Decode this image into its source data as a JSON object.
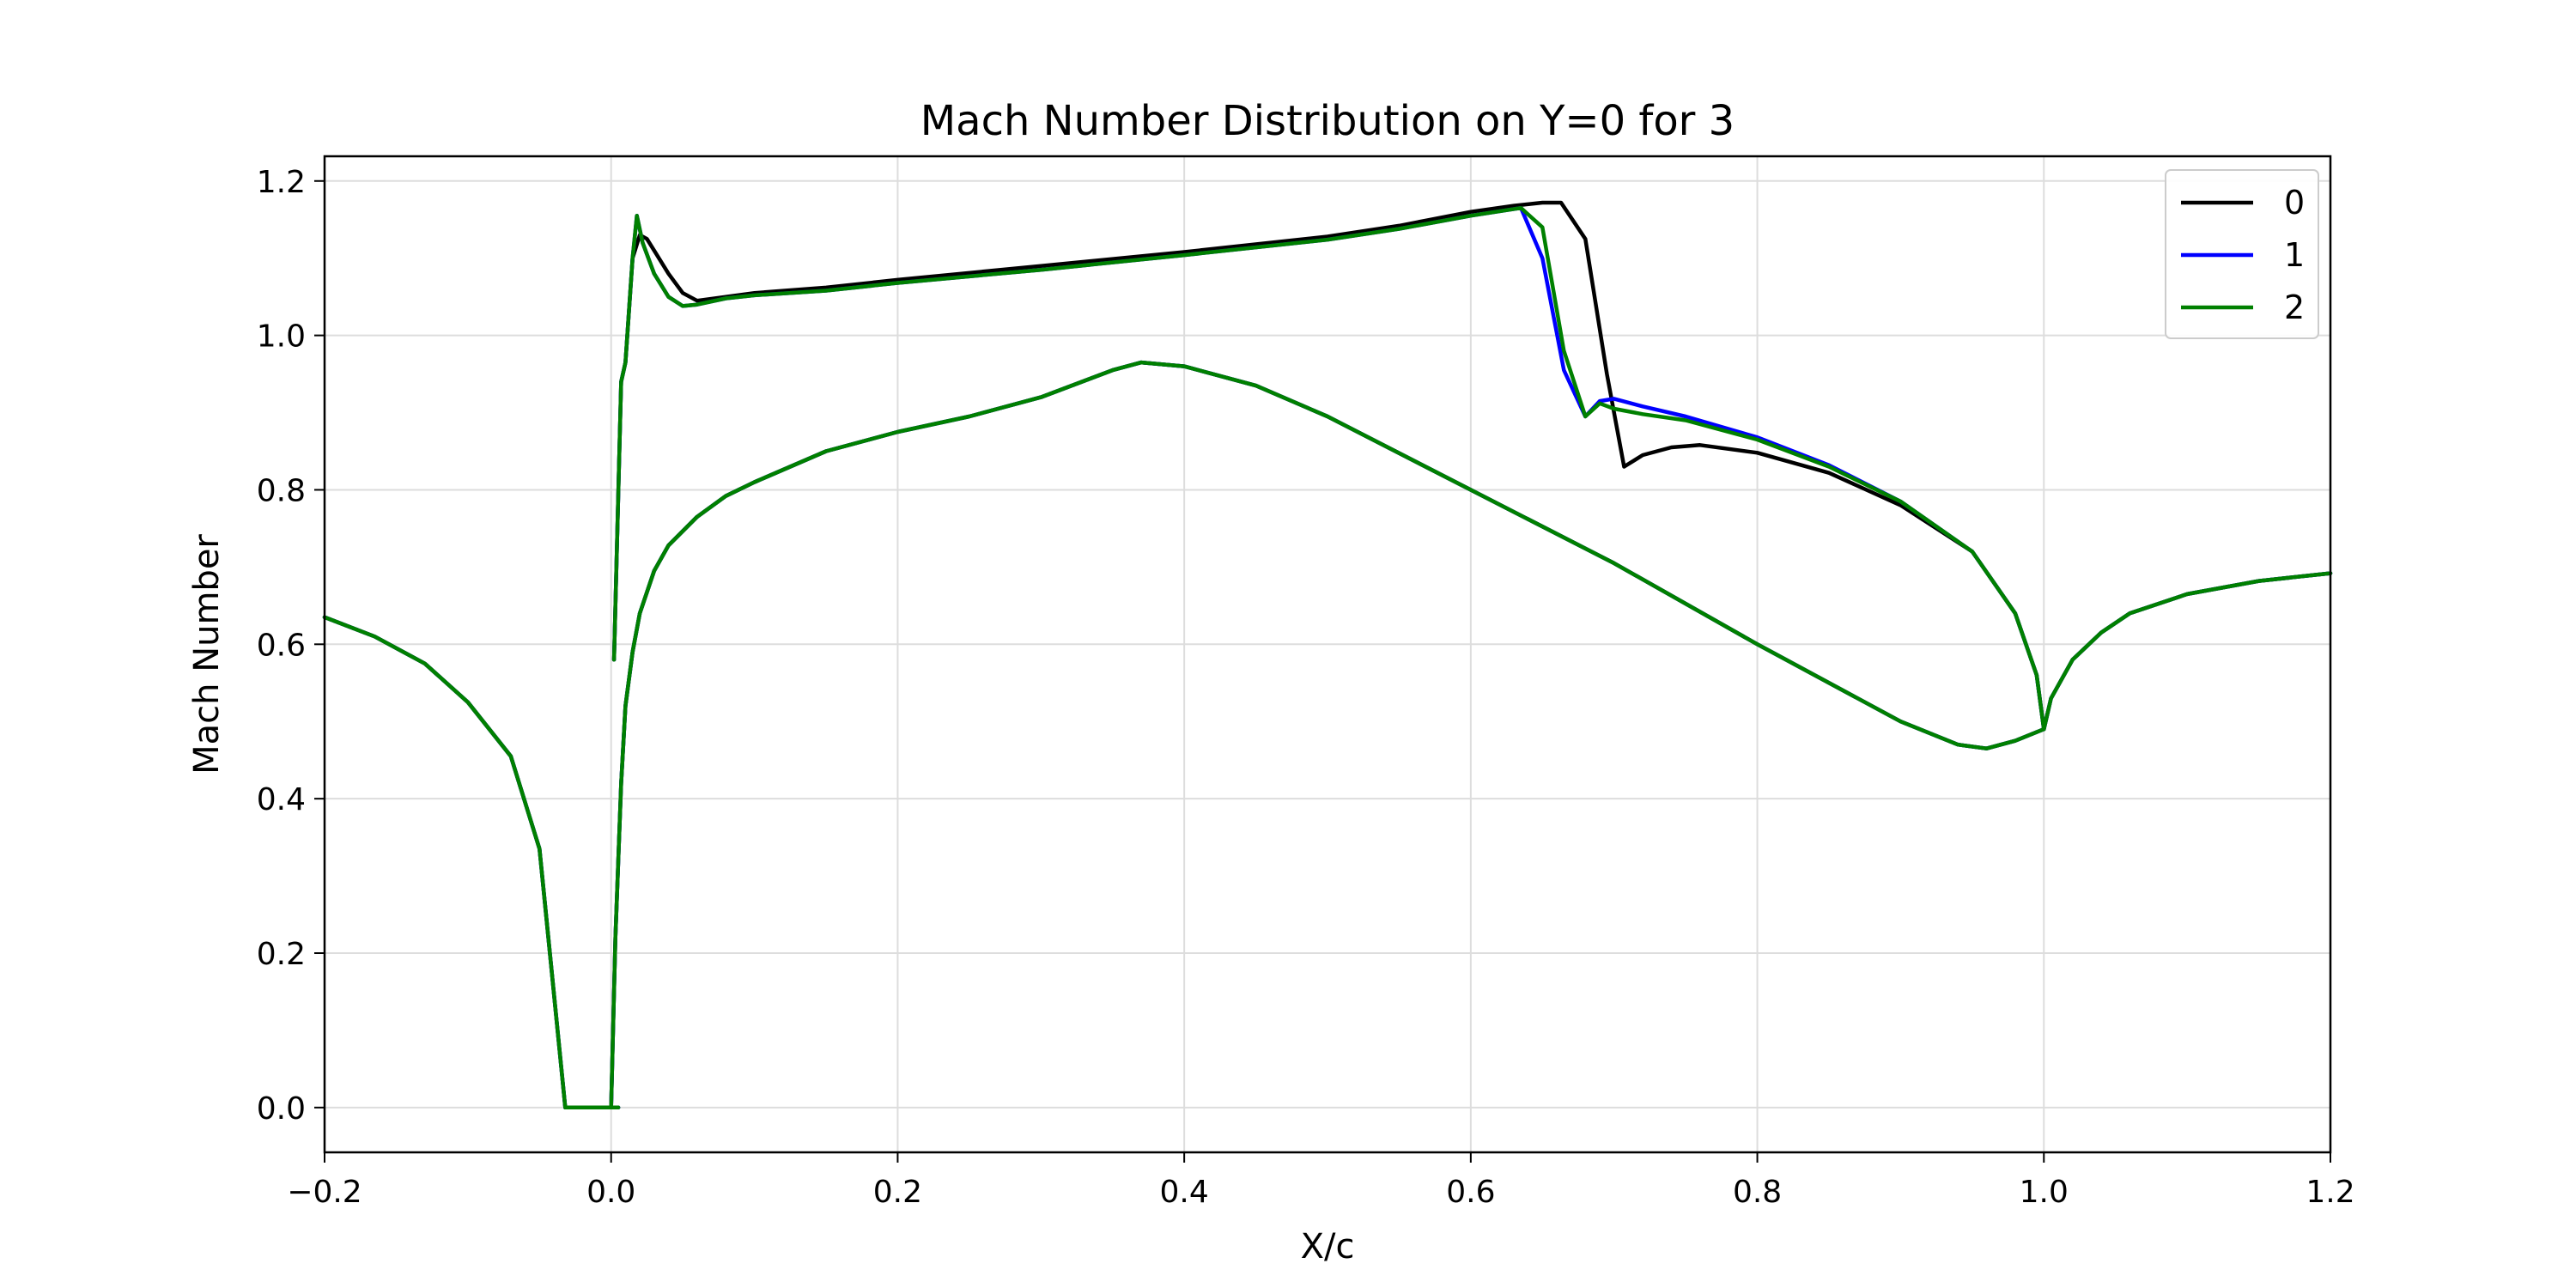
{
  "chart_data": {
    "type": "line",
    "title": "Mach Number Distribution on Y=0 for 3",
    "xlabel": "X/c",
    "ylabel": "Mach Number",
    "xlim": [
      -0.2,
      1.2
    ],
    "ylim": [
      -0.058,
      1.232
    ],
    "xticks": [
      -0.2,
      0.0,
      0.2,
      0.4,
      0.6,
      0.8,
      1.0,
      1.2
    ],
    "xtick_labels": [
      "−0.2",
      "0.0",
      "0.2",
      "0.4",
      "0.6",
      "0.8",
      "1.0",
      "1.2"
    ],
    "yticks": [
      0.0,
      0.2,
      0.4,
      0.6,
      0.8,
      1.0,
      1.2
    ],
    "ytick_labels": [
      "0.0",
      "0.2",
      "0.4",
      "0.6",
      "0.8",
      "1.0",
      "1.2"
    ],
    "grid": true,
    "legend_position": "top-right",
    "series": [
      {
        "name": "0",
        "color": "#000000",
        "segments": [
          [
            [
              -0.2,
              0.635
            ],
            [
              -0.165,
              0.61
            ],
            [
              -0.13,
              0.575
            ],
            [
              -0.1,
              0.525
            ],
            [
              -0.07,
              0.455
            ],
            [
              -0.05,
              0.335
            ],
            [
              -0.032,
              0.0
            ],
            [
              0.0,
              0.0
            ],
            [
              0.005,
              0.0
            ]
          ],
          [
            [
              0.002,
              0.58
            ],
            [
              0.007,
              0.94
            ],
            [
              0.01,
              0.965
            ],
            [
              0.015,
              1.1
            ],
            [
              0.02,
              1.13
            ],
            [
              0.025,
              1.125
            ],
            [
              0.03,
              1.11
            ],
            [
              0.04,
              1.08
            ],
            [
              0.05,
              1.055
            ],
            [
              0.06,
              1.045
            ],
            [
              0.08,
              1.05
            ],
            [
              0.1,
              1.055
            ],
            [
              0.15,
              1.062
            ],
            [
              0.2,
              1.072
            ],
            [
              0.3,
              1.09
            ],
            [
              0.4,
              1.108
            ],
            [
              0.5,
              1.128
            ],
            [
              0.55,
              1.142
            ],
            [
              0.6,
              1.16
            ],
            [
              0.63,
              1.168
            ],
            [
              0.65,
              1.172
            ],
            [
              0.663,
              1.172
            ],
            [
              0.68,
              1.125
            ],
            [
              0.695,
              0.95
            ],
            [
              0.707,
              0.83
            ],
            [
              0.72,
              0.845
            ],
            [
              0.74,
              0.855
            ],
            [
              0.76,
              0.858
            ],
            [
              0.8,
              0.848
            ],
            [
              0.85,
              0.822
            ],
            [
              0.9,
              0.78
            ],
            [
              0.95,
              0.72
            ],
            [
              0.98,
              0.64
            ],
            [
              0.995,
              0.56
            ],
            [
              1.0,
              0.49
            ]
          ],
          [
            [
              0.0,
              0.0
            ],
            [
              0.003,
              0.22
            ],
            [
              0.007,
              0.42
            ],
            [
              0.01,
              0.52
            ],
            [
              0.015,
              0.59
            ],
            [
              0.02,
              0.64
            ],
            [
              0.03,
              0.695
            ],
            [
              0.04,
              0.728
            ],
            [
              0.06,
              0.765
            ],
            [
              0.08,
              0.792
            ],
            [
              0.1,
              0.81
            ],
            [
              0.15,
              0.85
            ],
            [
              0.2,
              0.875
            ],
            [
              0.25,
              0.895
            ],
            [
              0.3,
              0.92
            ],
            [
              0.35,
              0.955
            ],
            [
              0.37,
              0.965
            ],
            [
              0.4,
              0.96
            ],
            [
              0.45,
              0.935
            ],
            [
              0.5,
              0.895
            ],
            [
              0.6,
              0.8
            ],
            [
              0.7,
              0.705
            ],
            [
              0.8,
              0.6
            ],
            [
              0.9,
              0.5
            ],
            [
              0.94,
              0.47
            ],
            [
              0.96,
              0.465
            ],
            [
              0.98,
              0.475
            ],
            [
              1.0,
              0.49
            ],
            [
              1.005,
              0.53
            ],
            [
              1.02,
              0.58
            ],
            [
              1.04,
              0.615
            ],
            [
              1.06,
              0.64
            ],
            [
              1.1,
              0.665
            ],
            [
              1.15,
              0.682
            ],
            [
              1.2,
              0.692
            ]
          ]
        ]
      },
      {
        "name": "1",
        "color": "#0000ff",
        "segments": [
          [
            [
              -0.2,
              0.635
            ],
            [
              -0.165,
              0.61
            ],
            [
              -0.13,
              0.575
            ],
            [
              -0.1,
              0.525
            ],
            [
              -0.07,
              0.455
            ],
            [
              -0.05,
              0.335
            ],
            [
              -0.032,
              0.0
            ],
            [
              0.0,
              0.0
            ],
            [
              0.005,
              0.0
            ]
          ],
          [
            [
              0.002,
              0.58
            ],
            [
              0.007,
              0.94
            ],
            [
              0.01,
              0.965
            ],
            [
              0.015,
              1.1
            ],
            [
              0.018,
              1.155
            ],
            [
              0.022,
              1.12
            ],
            [
              0.03,
              1.08
            ],
            [
              0.04,
              1.05
            ],
            [
              0.05,
              1.038
            ],
            [
              0.06,
              1.04
            ],
            [
              0.08,
              1.048
            ],
            [
              0.1,
              1.052
            ],
            [
              0.15,
              1.058
            ],
            [
              0.2,
              1.068
            ],
            [
              0.3,
              1.085
            ],
            [
              0.4,
              1.104
            ],
            [
              0.5,
              1.124
            ],
            [
              0.55,
              1.138
            ],
            [
              0.6,
              1.155
            ],
            [
              0.635,
              1.165
            ],
            [
              0.65,
              1.1
            ],
            [
              0.665,
              0.955
            ],
            [
              0.68,
              0.895
            ],
            [
              0.69,
              0.915
            ],
            [
              0.7,
              0.918
            ],
            [
              0.72,
              0.908
            ],
            [
              0.75,
              0.895
            ],
            [
              0.8,
              0.868
            ],
            [
              0.85,
              0.832
            ],
            [
              0.9,
              0.785
            ],
            [
              0.95,
              0.72
            ],
            [
              0.98,
              0.64
            ],
            [
              0.995,
              0.56
            ],
            [
              1.0,
              0.49
            ]
          ],
          [
            [
              0.0,
              0.0
            ],
            [
              0.003,
              0.22
            ],
            [
              0.007,
              0.42
            ],
            [
              0.01,
              0.52
            ],
            [
              0.015,
              0.59
            ],
            [
              0.02,
              0.64
            ],
            [
              0.03,
              0.695
            ],
            [
              0.04,
              0.728
            ],
            [
              0.06,
              0.765
            ],
            [
              0.08,
              0.792
            ],
            [
              0.1,
              0.81
            ],
            [
              0.15,
              0.85
            ],
            [
              0.2,
              0.875
            ],
            [
              0.25,
              0.895
            ],
            [
              0.3,
              0.92
            ],
            [
              0.35,
              0.955
            ],
            [
              0.37,
              0.965
            ],
            [
              0.4,
              0.96
            ],
            [
              0.45,
              0.935
            ],
            [
              0.5,
              0.895
            ],
            [
              0.6,
              0.8
            ],
            [
              0.7,
              0.705
            ],
            [
              0.8,
              0.6
            ],
            [
              0.9,
              0.5
            ],
            [
              0.94,
              0.47
            ],
            [
              0.96,
              0.465
            ],
            [
              0.98,
              0.475
            ],
            [
              1.0,
              0.49
            ],
            [
              1.005,
              0.53
            ],
            [
              1.02,
              0.58
            ],
            [
              1.04,
              0.615
            ],
            [
              1.06,
              0.64
            ],
            [
              1.1,
              0.665
            ],
            [
              1.15,
              0.682
            ],
            [
              1.2,
              0.692
            ]
          ]
        ]
      },
      {
        "name": "2",
        "color": "#008000",
        "segments": [
          [
            [
              -0.2,
              0.635
            ],
            [
              -0.165,
              0.61
            ],
            [
              -0.13,
              0.575
            ],
            [
              -0.1,
              0.525
            ],
            [
              -0.07,
              0.455
            ],
            [
              -0.05,
              0.335
            ],
            [
              -0.032,
              0.0
            ],
            [
              0.0,
              0.0
            ],
            [
              0.005,
              0.0
            ]
          ],
          [
            [
              0.002,
              0.58
            ],
            [
              0.007,
              0.94
            ],
            [
              0.01,
              0.965
            ],
            [
              0.015,
              1.1
            ],
            [
              0.018,
              1.155
            ],
            [
              0.022,
              1.12
            ],
            [
              0.03,
              1.08
            ],
            [
              0.04,
              1.05
            ],
            [
              0.05,
              1.038
            ],
            [
              0.06,
              1.04
            ],
            [
              0.08,
              1.048
            ],
            [
              0.1,
              1.052
            ],
            [
              0.15,
              1.058
            ],
            [
              0.2,
              1.068
            ],
            [
              0.3,
              1.085
            ],
            [
              0.4,
              1.104
            ],
            [
              0.5,
              1.124
            ],
            [
              0.55,
              1.138
            ],
            [
              0.6,
              1.155
            ],
            [
              0.635,
              1.165
            ],
            [
              0.65,
              1.14
            ],
            [
              0.665,
              0.98
            ],
            [
              0.68,
              0.895
            ],
            [
              0.69,
              0.912
            ],
            [
              0.7,
              0.905
            ],
            [
              0.72,
              0.898
            ],
            [
              0.75,
              0.89
            ],
            [
              0.8,
              0.865
            ],
            [
              0.85,
              0.83
            ],
            [
              0.9,
              0.785
            ],
            [
              0.95,
              0.72
            ],
            [
              0.98,
              0.64
            ],
            [
              0.995,
              0.56
            ],
            [
              1.0,
              0.49
            ]
          ],
          [
            [
              0.0,
              0.0
            ],
            [
              0.003,
              0.22
            ],
            [
              0.007,
              0.42
            ],
            [
              0.01,
              0.52
            ],
            [
              0.015,
              0.59
            ],
            [
              0.02,
              0.64
            ],
            [
              0.03,
              0.695
            ],
            [
              0.04,
              0.728
            ],
            [
              0.06,
              0.765
            ],
            [
              0.08,
              0.792
            ],
            [
              0.1,
              0.81
            ],
            [
              0.15,
              0.85
            ],
            [
              0.2,
              0.875
            ],
            [
              0.25,
              0.895
            ],
            [
              0.3,
              0.92
            ],
            [
              0.35,
              0.955
            ],
            [
              0.37,
              0.965
            ],
            [
              0.4,
              0.96
            ],
            [
              0.45,
              0.935
            ],
            [
              0.5,
              0.895
            ],
            [
              0.6,
              0.8
            ],
            [
              0.7,
              0.705
            ],
            [
              0.8,
              0.6
            ],
            [
              0.9,
              0.5
            ],
            [
              0.94,
              0.47
            ],
            [
              0.96,
              0.465
            ],
            [
              0.98,
              0.475
            ],
            [
              1.0,
              0.49
            ],
            [
              1.005,
              0.53
            ],
            [
              1.02,
              0.58
            ],
            [
              1.04,
              0.615
            ],
            [
              1.06,
              0.64
            ],
            [
              1.1,
              0.665
            ],
            [
              1.15,
              0.682
            ],
            [
              1.2,
              0.692
            ]
          ]
        ]
      }
    ]
  }
}
